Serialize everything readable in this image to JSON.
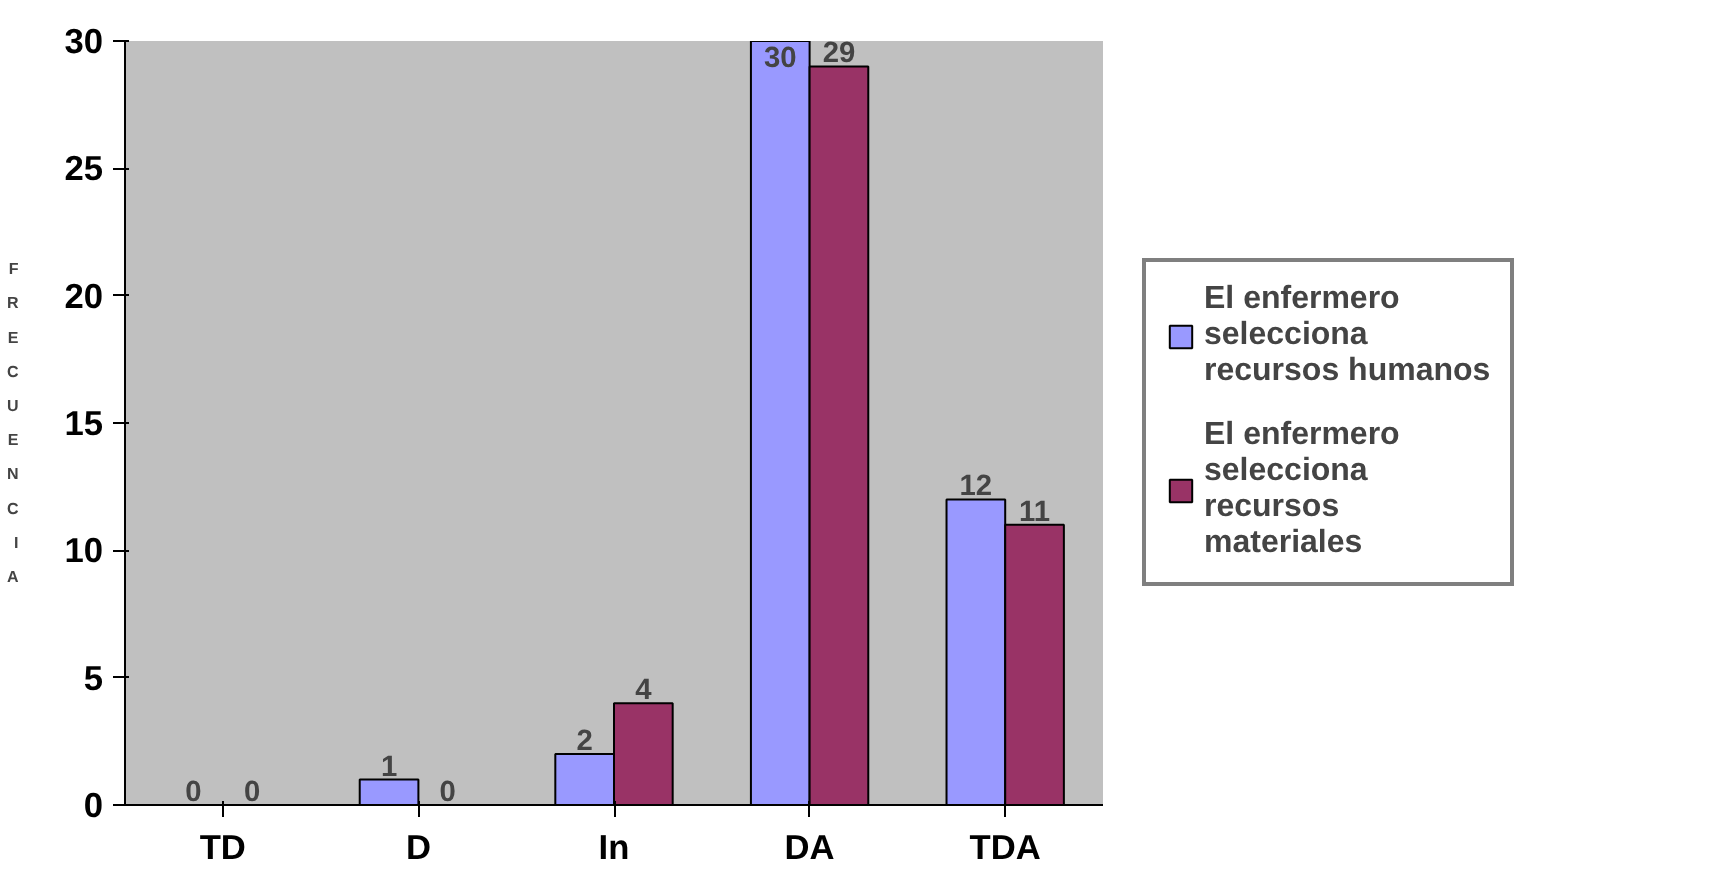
{
  "chart_data": {
    "type": "bar",
    "ylabel": "FRECUENCIA",
    "categories": [
      "TD",
      "D",
      "In",
      "DA",
      "TDA"
    ],
    "series": [
      {
        "name": "El enfermero selecciona recursos humanos",
        "color": "#9999ff",
        "values": [
          0,
          1,
          2,
          30,
          12
        ]
      },
      {
        "name": "El enfermero selecciona recursos materiales",
        "color": "#993366",
        "values": [
          0,
          0,
          4,
          29,
          11
        ]
      }
    ],
    "ylim": [
      0,
      30
    ],
    "yticks": [
      0,
      5,
      10,
      15,
      20,
      25,
      30
    ],
    "grid": false,
    "legend": "right",
    "data_labels": true
  }
}
